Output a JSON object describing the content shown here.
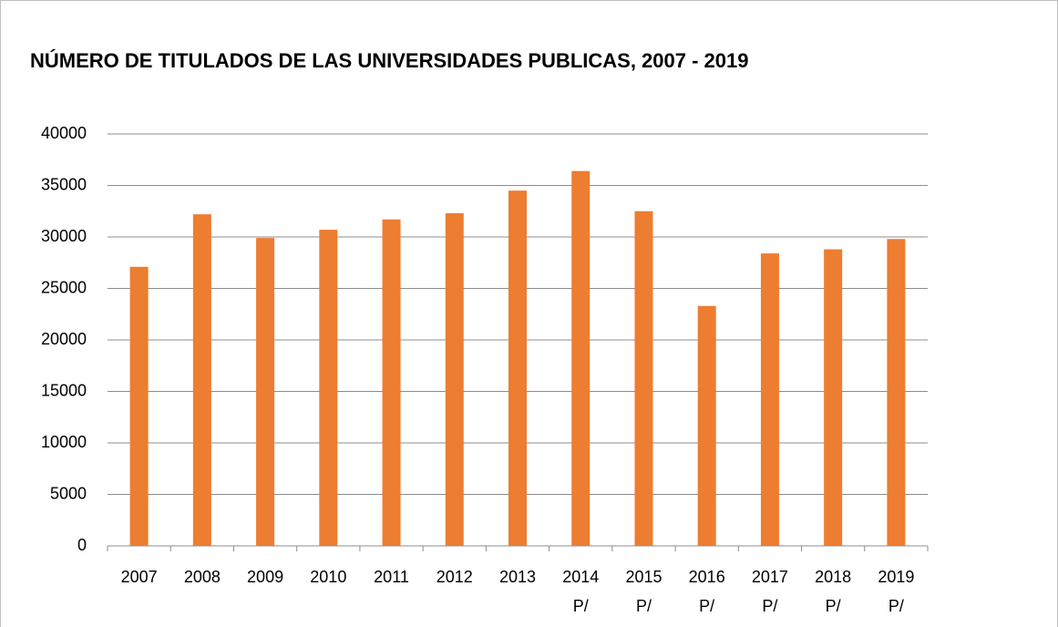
{
  "chart_data": {
    "type": "bar",
    "title": "NÚMERO DE TITULADOS DE LAS UNIVERSIDADES PUBLICAS, 2007 - 2019",
    "categories": [
      "2007",
      "2008",
      "2009",
      "2010",
      "2011",
      "2012",
      "2013",
      "2014 P/",
      "2015 P/",
      "2016 P/",
      "2017 P/",
      "2018 P/",
      "2019 P/"
    ],
    "values": [
      27100,
      32200,
      29900,
      30700,
      31700,
      32300,
      34500,
      36400,
      32500,
      23300,
      28400,
      28800,
      29800
    ],
    "color": "#ed7d31",
    "ylim": [
      0,
      40000
    ],
    "yticks": [
      0,
      5000,
      10000,
      15000,
      20000,
      25000,
      30000,
      35000,
      40000
    ],
    "grid": true
  }
}
